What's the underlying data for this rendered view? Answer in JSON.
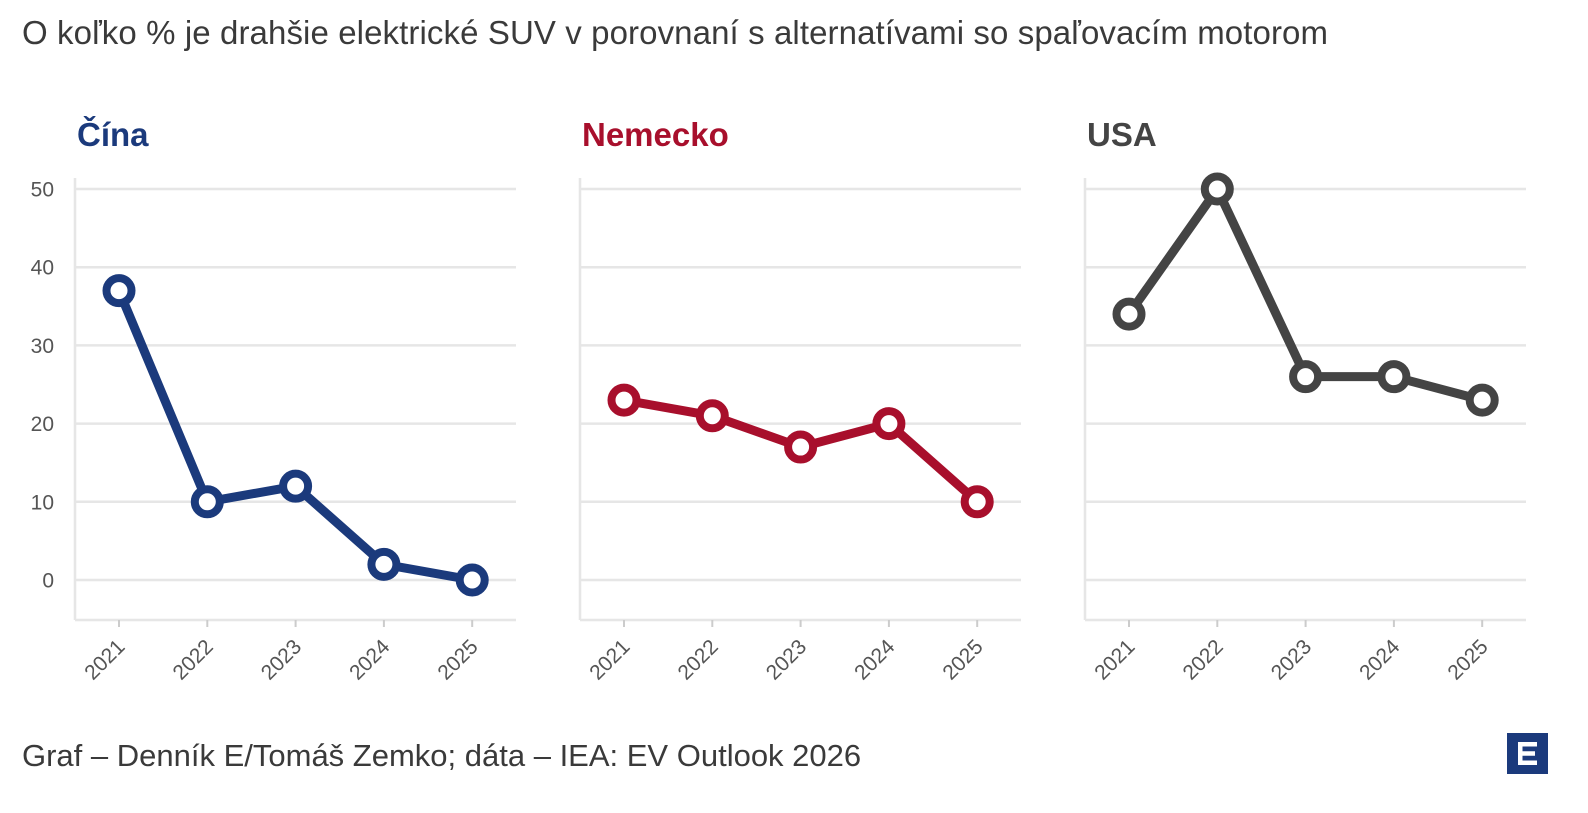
{
  "title": "O koľko % je drahšie elektrické SUV v porovnaní s alternatívami so spaľovacím motorom",
  "source": "Graf – Denník E/Tomáš Zemko; dáta – IEA: EV Outlook 2026",
  "logo": {
    "icon": "denník-e-logo-icon",
    "color": "#1b3a7c"
  },
  "chart_data": [
    {
      "type": "line",
      "title": "Čína",
      "color": "#1b3a7c",
      "x": [
        "2021",
        "2022",
        "2023",
        "2024",
        "2025"
      ],
      "values": [
        37,
        10,
        12,
        2,
        0
      ],
      "ylim": [
        -5,
        50
      ],
      "yticks": [
        0,
        10,
        20,
        30,
        40,
        50
      ],
      "grid": true
    },
    {
      "type": "line",
      "title": "Nemecko",
      "color": "#a80f2c",
      "x": [
        "2021",
        "2022",
        "2023",
        "2024",
        "2025"
      ],
      "values": [
        23,
        21,
        17,
        20,
        10
      ],
      "ylim": [
        -5,
        50
      ],
      "yticks": [
        0,
        10,
        20,
        30,
        40,
        50
      ],
      "grid": true
    },
    {
      "type": "line",
      "title": "USA",
      "color": "#444444",
      "x": [
        "2021",
        "2022",
        "2023",
        "2024",
        "2025"
      ],
      "values": [
        34,
        50,
        26,
        26,
        23
      ],
      "ylim": [
        -5,
        50
      ],
      "yticks": [
        0,
        10,
        20,
        30,
        40,
        50
      ],
      "grid": true
    }
  ]
}
